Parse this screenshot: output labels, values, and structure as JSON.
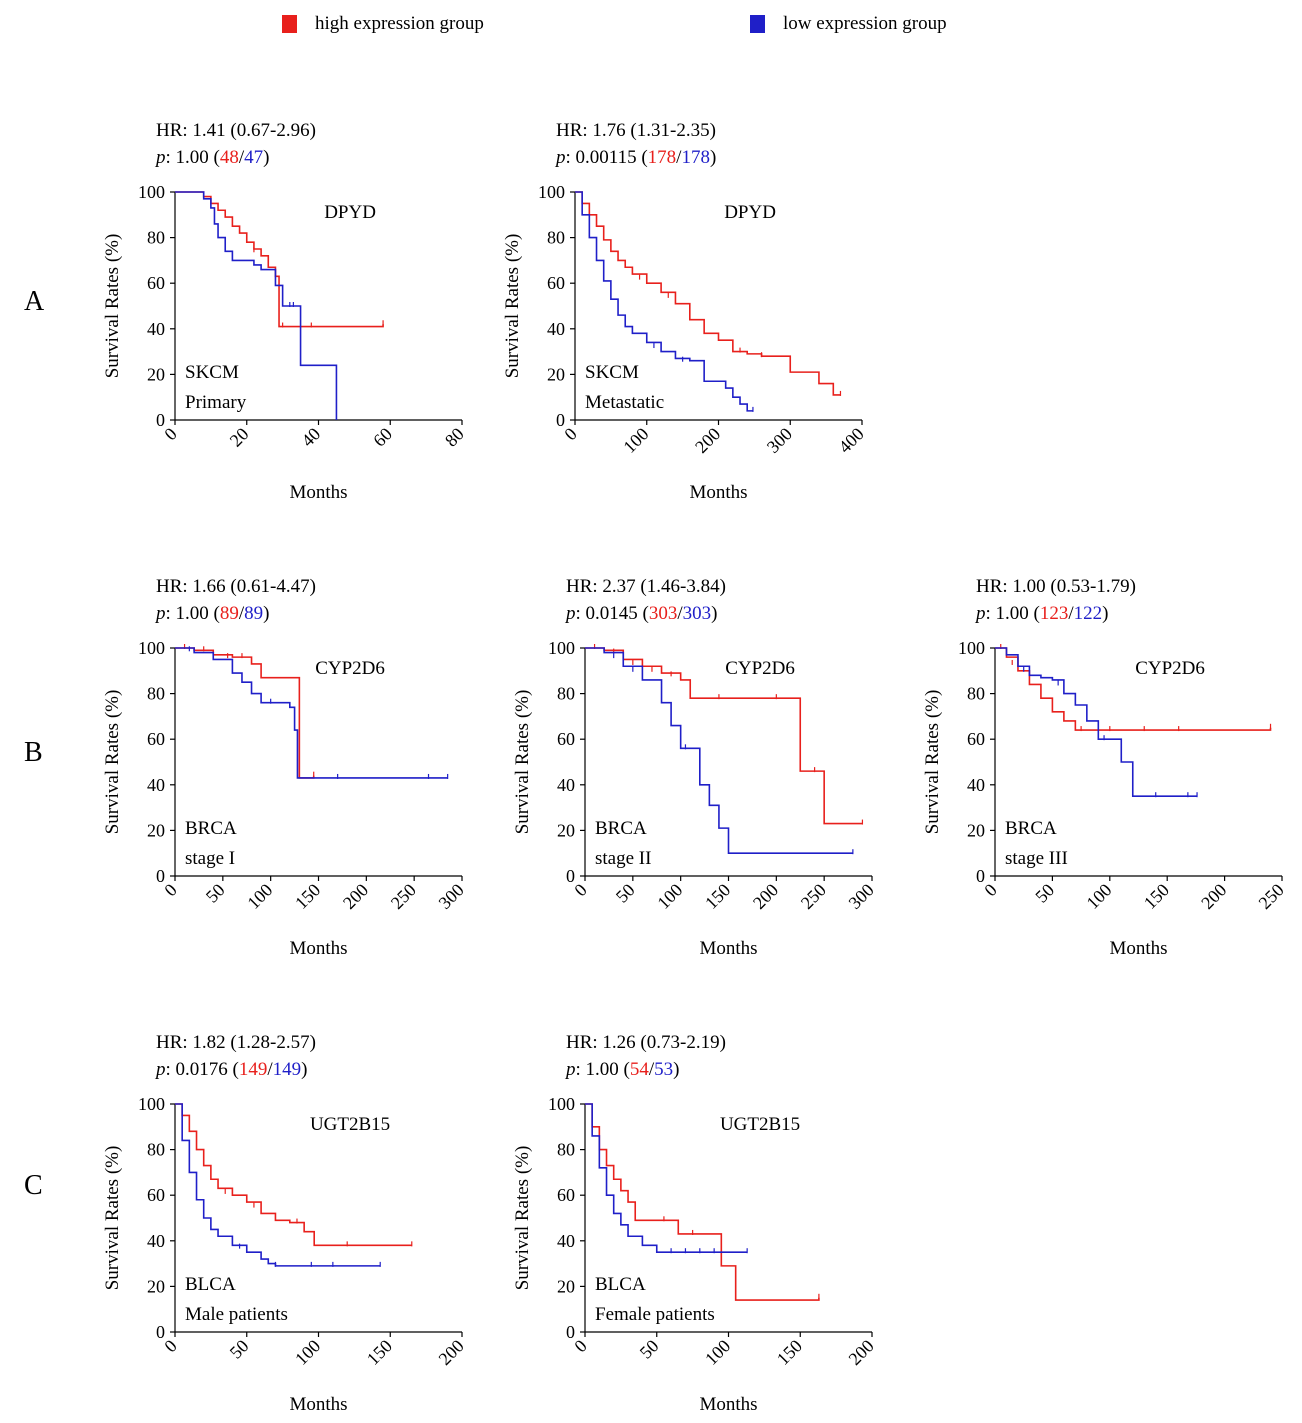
{
  "colors": {
    "high": "#e8201c",
    "low": "#1f1fc8",
    "axis": "#000000"
  },
  "legend": {
    "high_label": "high expression group",
    "low_label": "low expression group"
  },
  "panel_letters": [
    "A",
    "B",
    "C"
  ],
  "chart_data": [
    {
      "type": "line",
      "gene": "DPYD",
      "cancer": "SKCM",
      "subgroup": "Primary",
      "hr_line": "HR: 1.41 (0.67-2.96)",
      "p_label": "p",
      "p_value": ": 1.00 (",
      "n_high": "48",
      "n_low": "47",
      "xlabel": "Months",
      "ylabel": "Survival Rates (%)",
      "xlim": [
        0,
        80
      ],
      "ylim": [
        0,
        100
      ],
      "xticks": [
        "0",
        "20",
        "40",
        "60",
        "80"
      ],
      "yticks": [
        "0",
        "20",
        "40",
        "60",
        "80",
        "100"
      ],
      "series": [
        {
          "name": "high expression group",
          "x": [
            0,
            8,
            10,
            12,
            14,
            16,
            18,
            20,
            22,
            24,
            26,
            28,
            29,
            58
          ],
          "y": [
            100,
            98,
            95,
            92,
            89,
            85,
            82,
            78,
            75,
            72,
            67,
            63,
            41,
            42
          ],
          "censor": [
            [
              14,
              90
            ],
            [
              22,
              74
            ],
            [
              30,
              41
            ],
            [
              38,
              41
            ],
            [
              58,
              42
            ]
          ]
        },
        {
          "name": "low expression group",
          "x": [
            0,
            8,
            10,
            11,
            12,
            14,
            16,
            20,
            22,
            24,
            28,
            30,
            35,
            35,
            45,
            45
          ],
          "y": [
            100,
            97,
            93,
            86,
            80,
            74,
            70,
            70,
            68,
            66,
            59,
            50,
            50,
            24,
            24,
            0
          ],
          "censor": [
            [
              32,
              50
            ],
            [
              33,
              50
            ]
          ]
        }
      ]
    },
    {
      "type": "line",
      "gene": "DPYD",
      "cancer": "SKCM",
      "subgroup": "Metastatic",
      "hr_line": "HR: 1.76 (1.31-2.35)",
      "p_label": "p",
      "p_value": ": 0.00115 (",
      "n_high": "178",
      "n_low": "178",
      "xlabel": "Months",
      "ylabel": "Survival Rates (%)",
      "xlim": [
        0,
        400
      ],
      "ylim": [
        0,
        100
      ],
      "xticks": [
        "0",
        "100",
        "200",
        "300",
        "400"
      ],
      "yticks": [
        "0",
        "20",
        "40",
        "60",
        "80",
        "100"
      ],
      "series": [
        {
          "name": "high expression group",
          "x": [
            0,
            10,
            20,
            30,
            40,
            50,
            60,
            70,
            80,
            100,
            120,
            140,
            160,
            180,
            200,
            220,
            240,
            260,
            300,
            340,
            360,
            370
          ],
          "y": [
            100,
            95,
            90,
            85,
            79,
            74,
            70,
            67,
            64,
            60,
            56,
            51,
            44,
            38,
            35,
            30,
            29,
            28,
            21,
            16,
            11,
            11
          ],
          "censor": [
            [
              90,
              62
            ],
            [
              130,
              54
            ],
            [
              230,
              30
            ],
            [
              260,
              28
            ],
            [
              370,
              11
            ]
          ]
        },
        {
          "name": "low expression group",
          "x": [
            0,
            10,
            20,
            30,
            40,
            50,
            60,
            70,
            80,
            100,
            120,
            140,
            160,
            180,
            200,
            210,
            220,
            230,
            240,
            248
          ],
          "y": [
            100,
            90,
            80,
            70,
            61,
            53,
            46,
            41,
            38,
            34,
            30,
            27,
            26,
            17,
            17,
            14,
            10,
            7,
            4,
            4
          ],
          "censor": [
            [
              110,
              32
            ],
            [
              150,
              26
            ],
            [
              248,
              4
            ]
          ]
        }
      ]
    },
    {
      "type": "line",
      "gene": "CYP2D6",
      "cancer": "BRCA",
      "subgroup": "stage I",
      "hr_line": "HR: 1.66 (0.61-4.47)",
      "p_label": "p",
      "p_value": ": 1.00 (",
      "n_high": "89",
      "n_low": "89",
      "xlabel": "Months",
      "ylabel": "Survival Rates (%)",
      "xlim": [
        0,
        300
      ],
      "ylim": [
        0,
        100
      ],
      "xticks": [
        "0",
        "50",
        "100",
        "150",
        "200",
        "250",
        "300"
      ],
      "yticks": [
        "0",
        "20",
        "40",
        "60",
        "80",
        "100"
      ],
      "series": [
        {
          "name": "high expression group",
          "x": [
            0,
            20,
            40,
            60,
            80,
            90,
            100,
            130,
            130,
            145
          ],
          "y": [
            100,
            99,
            97,
            96,
            93,
            87,
            87,
            86,
            43,
            44
          ],
          "censor": [
            [
              10,
              100
            ],
            [
              30,
              99
            ],
            [
              55,
              96
            ],
            [
              70,
              96
            ],
            [
              145,
              44
            ]
          ]
        },
        {
          "name": "low expression group",
          "x": [
            0,
            20,
            40,
            60,
            70,
            80,
            90,
            110,
            120,
            125,
            128,
            285
          ],
          "y": [
            100,
            98,
            95,
            89,
            85,
            80,
            76,
            76,
            74,
            64,
            43,
            43
          ],
          "censor": [
            [
              15,
              99
            ],
            [
              100,
              76
            ],
            [
              170,
              43
            ],
            [
              265,
              43
            ],
            [
              285,
              43
            ]
          ]
        }
      ]
    },
    {
      "type": "line",
      "gene": "CYP2D6",
      "cancer": "BRCA",
      "subgroup": "stage II",
      "hr_line": "HR: 2.37 (1.46-3.84)",
      "p_label": "p",
      "p_value": ": 0.0145 (",
      "n_high": "303",
      "n_low": "303",
      "xlabel": "Months",
      "ylabel": "Survival Rates (%)",
      "xlim": [
        0,
        300
      ],
      "ylim": [
        0,
        100
      ],
      "xticks": [
        "0",
        "50",
        "100",
        "150",
        "200",
        "250",
        "300"
      ],
      "yticks": [
        "0",
        "20",
        "40",
        "60",
        "80",
        "100"
      ],
      "series": [
        {
          "name": "high expression group",
          "x": [
            0,
            20,
            40,
            60,
            80,
            100,
            110,
            220,
            225,
            250,
            250,
            290
          ],
          "y": [
            100,
            99,
            95,
            92,
            89,
            86,
            78,
            78,
            46,
            46,
            23,
            23
          ],
          "censor": [
            [
              10,
              100
            ],
            [
              30,
              98
            ],
            [
              50,
              93
            ],
            [
              70,
              90
            ],
            [
              90,
              88
            ],
            [
              140,
              78
            ],
            [
              200,
              78
            ],
            [
              240,
              46
            ],
            [
              290,
              23
            ]
          ]
        },
        {
          "name": "low expression group",
          "x": [
            0,
            20,
            40,
            60,
            80,
            90,
            100,
            110,
            120,
            130,
            140,
            150,
            150,
            280
          ],
          "y": [
            100,
            98,
            92,
            86,
            76,
            66,
            56,
            56,
            40,
            31,
            21,
            21,
            10,
            10
          ],
          "censor": [
            [
              30,
              96
            ],
            [
              50,
              90
            ],
            [
              105,
              56
            ],
            [
              280,
              10
            ]
          ]
        }
      ]
    },
    {
      "type": "line",
      "gene": "CYP2D6",
      "cancer": "BRCA",
      "subgroup": "stage III",
      "hr_line": "HR: 1.00 (0.53-1.79)",
      "p_label": "p",
      "p_value": ": 1.00 (",
      "n_high": "123",
      "n_low": "122",
      "xlabel": "Months",
      "ylabel": "Survival Rates (%)",
      "xlim": [
        0,
        250
      ],
      "ylim": [
        0,
        100
      ],
      "xticks": [
        "0",
        "50",
        "100",
        "150",
        "200",
        "250"
      ],
      "yticks": [
        "0",
        "20",
        "40",
        "60",
        "80",
        "100"
      ],
      "series": [
        {
          "name": "high expression group",
          "x": [
            0,
            10,
            20,
            30,
            40,
            50,
            60,
            70,
            240
          ],
          "y": [
            100,
            96,
            90,
            84,
            78,
            72,
            68,
            64,
            65
          ],
          "censor": [
            [
              5,
              100
            ],
            [
              15,
              93
            ],
            [
              75,
              64
            ],
            [
              100,
              64
            ],
            [
              130,
              64
            ],
            [
              160,
              64
            ],
            [
              240,
              65
            ]
          ]
        },
        {
          "name": "low expression group",
          "x": [
            0,
            10,
            20,
            30,
            40,
            50,
            60,
            70,
            80,
            90,
            100,
            110,
            120,
            176
          ],
          "y": [
            100,
            97,
            92,
            88,
            87,
            86,
            80,
            75,
            68,
            60,
            60,
            50,
            35,
            35
          ],
          "censor": [
            [
              25,
              90
            ],
            [
              55,
              84
            ],
            [
              95,
              60
            ],
            [
              140,
              35
            ],
            [
              168,
              35
            ],
            [
              176,
              35
            ]
          ]
        }
      ]
    },
    {
      "type": "line",
      "gene": "UGT2B15",
      "cancer": "BLCA",
      "subgroup": "Male patients",
      "hr_line": "HR: 1.82 (1.28-2.57)",
      "p_label": "p",
      "p_value": ": 0.0176 (",
      "n_high": "149",
      "n_low": "149",
      "xlabel": "Months",
      "ylabel": "Survival Rates (%)",
      "xlim": [
        0,
        200
      ],
      "ylim": [
        0,
        100
      ],
      "xticks": [
        "0",
        "50",
        "100",
        "150",
        "200"
      ],
      "yticks": [
        "0",
        "20",
        "40",
        "60",
        "80",
        "100"
      ],
      "series": [
        {
          "name": "high expression group",
          "x": [
            0,
            5,
            10,
            15,
            20,
            25,
            30,
            40,
            50,
            60,
            70,
            80,
            90,
            97,
            100,
            165
          ],
          "y": [
            100,
            95,
            88,
            80,
            73,
            67,
            63,
            60,
            57,
            52,
            49,
            48,
            44,
            38,
            38,
            38
          ],
          "censor": [
            [
              35,
              61
            ],
            [
              55,
              55
            ],
            [
              85,
              48
            ],
            [
              120,
              38
            ],
            [
              165,
              38
            ]
          ]
        },
        {
          "name": "low expression group",
          "x": [
            0,
            5,
            10,
            15,
            20,
            25,
            30,
            40,
            50,
            60,
            65,
            70,
            143
          ],
          "y": [
            100,
            84,
            70,
            58,
            50,
            45,
            42,
            38,
            35,
            32,
            30,
            29,
            29
          ],
          "censor": [
            [
              45,
              37
            ],
            [
              70,
              29
            ],
            [
              95,
              29
            ],
            [
              110,
              29
            ],
            [
              143,
              29
            ]
          ]
        }
      ]
    },
    {
      "type": "line",
      "gene": "UGT2B15",
      "cancer": "BLCA",
      "subgroup": "Female patients",
      "hr_line": "HR: 1.26 (0.73-2.19)",
      "p_label": "p",
      "p_value": ": 1.00 (",
      "n_high": "54",
      "n_low": "53",
      "xlabel": "Months",
      "ylabel": "Survival Rates (%)",
      "xlim": [
        0,
        200
      ],
      "ylim": [
        0,
        100
      ],
      "xticks": [
        "0",
        "50",
        "100",
        "150",
        "200"
      ],
      "yticks": [
        "0",
        "20",
        "40",
        "60",
        "80",
        "100"
      ],
      "series": [
        {
          "name": "high expression group",
          "x": [
            0,
            5,
            10,
            15,
            20,
            25,
            30,
            35,
            65,
            95,
            105,
            163
          ],
          "y": [
            100,
            90,
            80,
            73,
            67,
            62,
            57,
            49,
            43,
            29,
            14,
            15
          ],
          "censor": [
            [
              55,
              49
            ],
            [
              75,
              43
            ],
            [
              163,
              15
            ]
          ]
        },
        {
          "name": "low expression group",
          "x": [
            0,
            5,
            10,
            15,
            20,
            25,
            30,
            40,
            50,
            113
          ],
          "y": [
            100,
            86,
            72,
            60,
            52,
            47,
            42,
            38,
            35,
            35
          ],
          "censor": [
            [
              60,
              35
            ],
            [
              70,
              35
            ],
            [
              80,
              35
            ],
            [
              90,
              35
            ],
            [
              113,
              35
            ]
          ]
        }
      ]
    }
  ]
}
